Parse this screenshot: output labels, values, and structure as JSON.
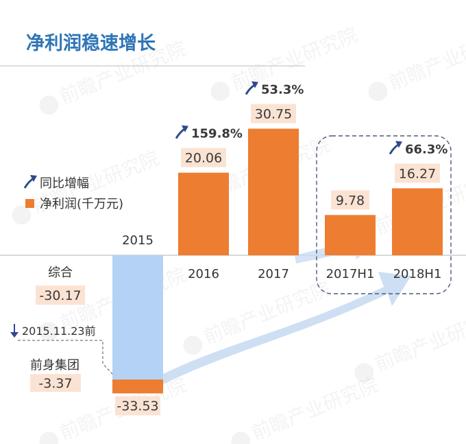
{
  "chart_data": {
    "type": "bar",
    "title": "净利润稳速增长",
    "categories": [
      "2015",
      "2016",
      "2017",
      "2017H1",
      "2018H1"
    ],
    "values": [
      -33.53,
      20.06,
      30.75,
      9.78,
      16.27
    ],
    "value_labels": [
      "-33.53",
      "20.06",
      "30.75",
      "9.78",
      "16.27"
    ],
    "growth_labels": [
      "",
      "159.8%",
      "53.3%",
      "",
      "66.3%"
    ],
    "breakdown_2015": {
      "consolidated_label": "综合",
      "consolidated_value": "-30.17",
      "predecessor_label": "前身集团",
      "predecessor_value": "-3.37",
      "date_note": "2015.11.23前"
    },
    "legend": [
      "同比增幅",
      "净利润(千万元)"
    ],
    "highlight_group": [
      "2017H1",
      "2018H1"
    ],
    "colors": {
      "title": "#2e75b6",
      "bar": "#ed7d31",
      "bar_2015_consolidated": "#b4d2f5",
      "label_bg": "#fbe3d3",
      "arrow": "#2f4a8a",
      "big_arrow": "#c9dcf2",
      "frame": "#4a5a78",
      "axis": "#b0b0b0"
    },
    "watermark": "前瞻产业研究院"
  }
}
